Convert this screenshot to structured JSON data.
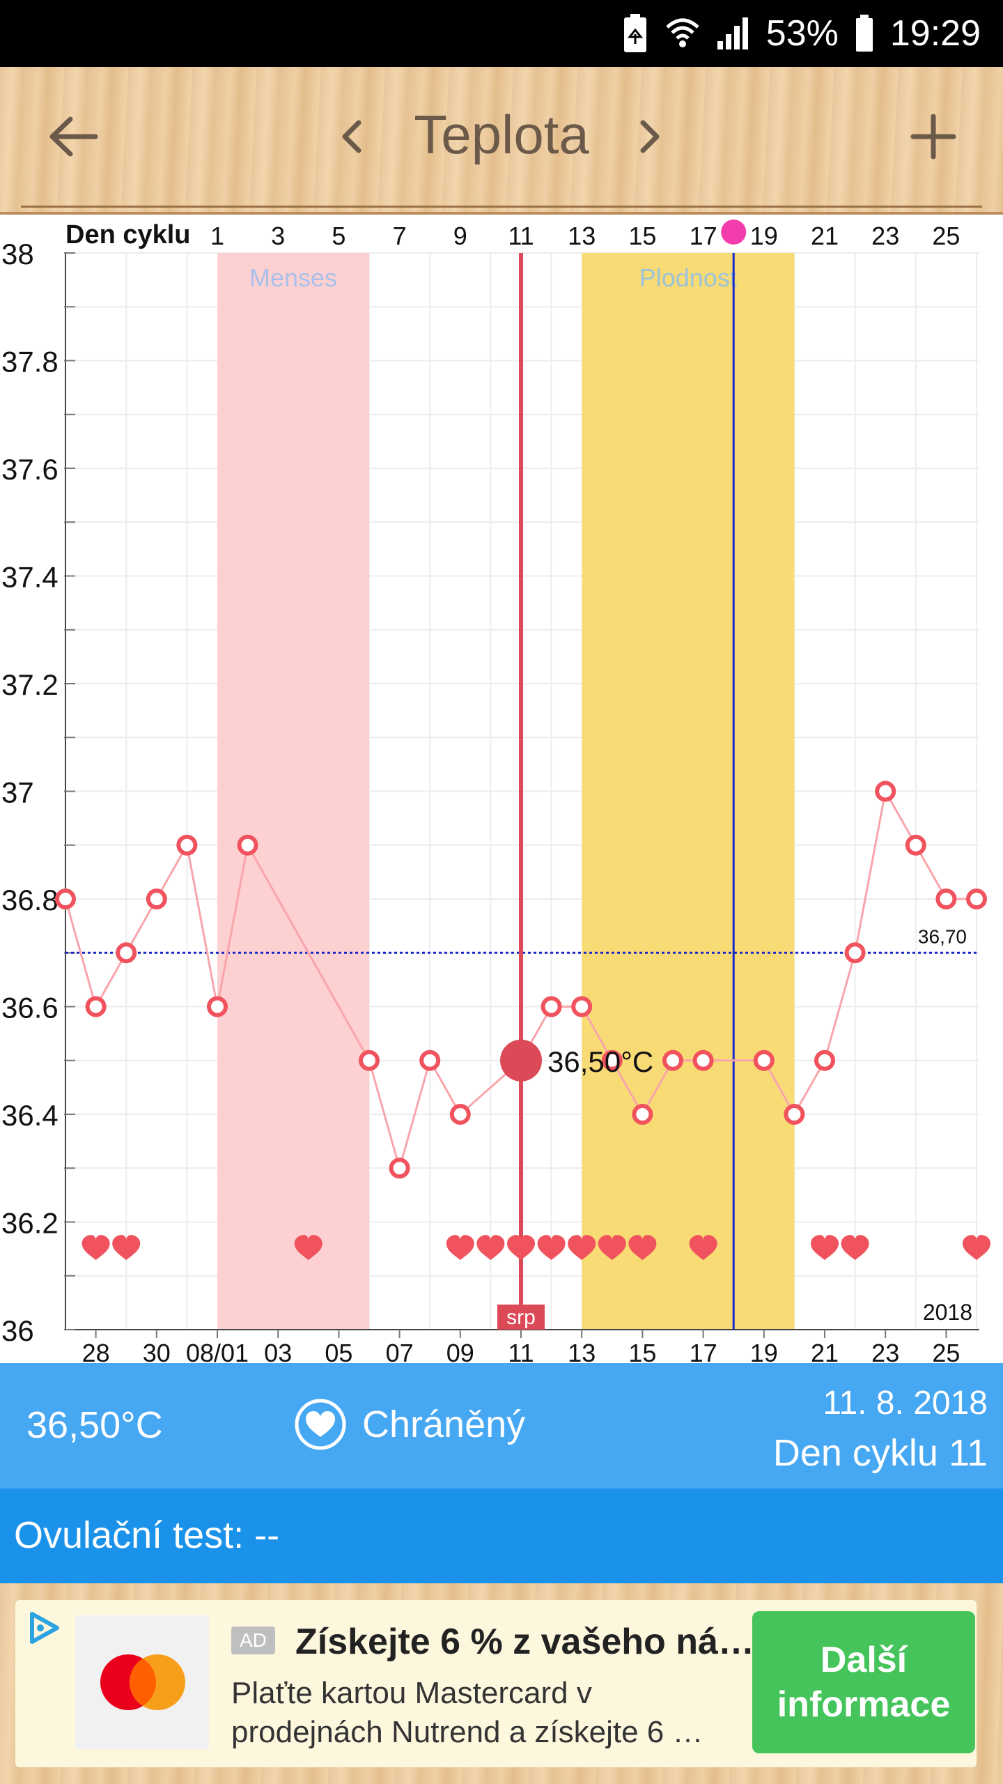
{
  "status_bar": {
    "battery_percent": "53%",
    "time": "19:29"
  },
  "app_bar": {
    "title": "Teplota",
    "back_icon": "arrow-left-icon",
    "prev_icon": "chevron-left-icon",
    "next_icon": "chevron-right-icon",
    "add_icon": "plus-icon"
  },
  "chart_data": {
    "type": "line",
    "top_axis_label": "Den cyklu",
    "top_ticks": [
      "1",
      "3",
      "5",
      "7",
      "9",
      "11",
      "13",
      "15",
      "17",
      "19",
      "21",
      "23",
      "25"
    ],
    "bottom_ticks": [
      "28",
      "30",
      "08/01",
      "03",
      "05",
      "07",
      "09",
      "11",
      "13",
      "15",
      "17",
      "19",
      "21",
      "23",
      "25"
    ],
    "y_ticks": [
      "38",
      "37.8",
      "37.6",
      "37.4",
      "37.2",
      "37",
      "36.8",
      "36.6",
      "36.4",
      "36.2",
      "36"
    ],
    "ylim": [
      36,
      38
    ],
    "year_label": "2018",
    "month_label": "srp",
    "bands": [
      {
        "label": "Menses",
        "from_index": 5,
        "to_index": 10,
        "color": "#fdd1d1"
      },
      {
        "label": "Plodnost",
        "from_index": 17,
        "to_index": 24,
        "color": "#f9db76"
      }
    ],
    "cover_line": {
      "value": 36.7,
      "label": "36,70"
    },
    "selected": {
      "index": 15,
      "value": 36.5,
      "label": "36,50°C"
    },
    "ovulation_index": 22,
    "points": [
      {
        "i": 0,
        "v": 36.8
      },
      {
        "i": 1,
        "v": 36.6
      },
      {
        "i": 2,
        "v": 36.7
      },
      {
        "i": 3,
        "v": 36.8
      },
      {
        "i": 4,
        "v": 36.9
      },
      {
        "i": 5,
        "v": 36.6
      },
      {
        "i": 6,
        "v": 36.9
      },
      {
        "i": 10,
        "v": 36.5
      },
      {
        "i": 11,
        "v": 36.3
      },
      {
        "i": 12,
        "v": 36.5
      },
      {
        "i": 13,
        "v": 36.4
      },
      {
        "i": 15,
        "v": 36.5
      },
      {
        "i": 16,
        "v": 36.6
      },
      {
        "i": 17,
        "v": 36.6
      },
      {
        "i": 18,
        "v": 36.5
      },
      {
        "i": 19,
        "v": 36.4
      },
      {
        "i": 20,
        "v": 36.5
      },
      {
        "i": 21,
        "v": 36.5
      },
      {
        "i": 23,
        "v": 36.5
      },
      {
        "i": 24,
        "v": 36.4
      },
      {
        "i": 25,
        "v": 36.5
      },
      {
        "i": 26,
        "v": 36.7
      },
      {
        "i": 27,
        "v": 37.0
      },
      {
        "i": 28,
        "v": 36.9
      },
      {
        "i": 29,
        "v": 36.8
      },
      {
        "i": 30,
        "v": 36.8
      }
    ],
    "hearts": [
      1,
      2,
      8,
      13,
      14,
      15,
      16,
      17,
      18,
      19,
      21,
      25,
      26,
      30
    ],
    "colors": {
      "line": "#f9a5ab",
      "point": "#f0535e",
      "selected": "#dd4a57",
      "cover": "#1a27c8",
      "ovulation": "#1a27c8",
      "heart": "#f0535e"
    }
  },
  "info": {
    "temperature": "36,50°C",
    "protection": "Chráněný",
    "date": "11. 8. 2018",
    "cycle_day": "Den cyklu 11"
  },
  "ovulation_test": {
    "label": "Ovulační test:",
    "value": "--"
  },
  "ad": {
    "tag": "AD",
    "headline": "Získejte 6 % z vašeho ná…",
    "body_line1": "Plaťte kartou Mastercard v",
    "body_line2": "prodejnách Nutrend a získejte 6 …",
    "cta_line1": "Další",
    "cta_line2": "informace"
  }
}
